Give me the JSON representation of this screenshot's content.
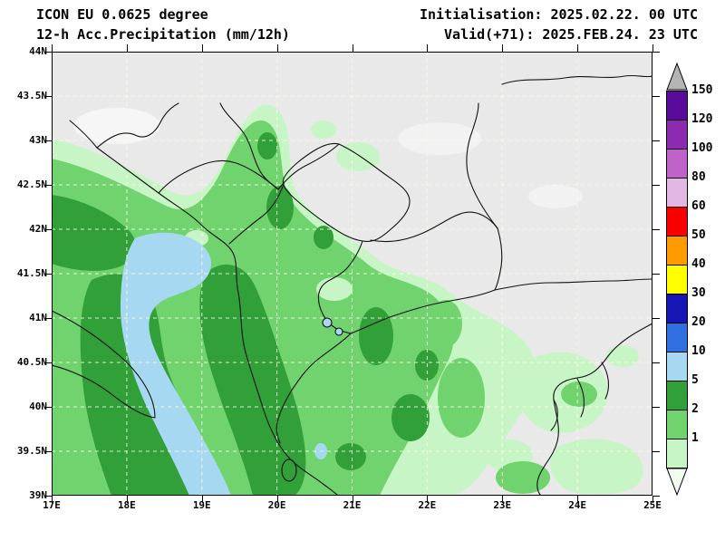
{
  "header": {
    "line1_left": "ICON EU 0.0625 degree",
    "line2_left": "12-h Acc.Precipitation (mm/12h)",
    "line1_right": "Initialisation: 2025.02.22. 00 UTC",
    "line2_right": "Valid(+71): 2025.FEB.24. 23 UTC"
  },
  "axes": {
    "lat": [
      "44N",
      "43.5N",
      "43N",
      "42.5N",
      "42N",
      "41.5N",
      "41N",
      "40.5N",
      "40N",
      "39.5N",
      "39N"
    ],
    "lon": [
      "17E",
      "18E",
      "19E",
      "20E",
      "21E",
      "22E",
      "23E",
      "24E",
      "25E"
    ]
  },
  "legend": {
    "arrow_top_color": "#b4b4b4",
    "arrow_bottom_color": "#f2fdf0",
    "bands": [
      {
        "label": "150",
        "color": "#5a0a9b"
      },
      {
        "label": "120",
        "color": "#8d2bb0"
      },
      {
        "label": "100",
        "color": "#bf63c8"
      },
      {
        "label": "80",
        "color": "#e3b7e3"
      },
      {
        "label": "60",
        "color": "#f80000"
      },
      {
        "label": "50",
        "color": "#ff9a00"
      },
      {
        "label": "40",
        "color": "#ffff00"
      },
      {
        "label": "30",
        "color": "#1616b4"
      },
      {
        "label": "20",
        "color": "#2f6fdf"
      },
      {
        "label": "10",
        "color": "#a6d8f2"
      },
      {
        "label": "5",
        "color": "#31a038"
      },
      {
        "label": "2",
        "color": "#70d36e"
      },
      {
        "label": "1",
        "color": "#c8f5c5"
      }
    ]
  },
  "map_colors": {
    "background": "#e9e9e9",
    "no_precip_patch": "#f6f6f6",
    "light_green": "#c8f5c5",
    "medium_green": "#70d36e",
    "dark_green": "#31a038",
    "light_blue": "#a6d8f2",
    "border": "#111111",
    "grid": "#fafae6"
  },
  "chart_data": {
    "type": "heatmap",
    "title": "12-h Acc.Precipitation (mm/12h)",
    "x_range": [
      "17E",
      "25E"
    ],
    "y_range": [
      "39N",
      "44N"
    ],
    "levels_mm": [
      1,
      2,
      5,
      10,
      20,
      30,
      40,
      50,
      60,
      80,
      100,
      120,
      150
    ],
    "legend_position": "right"
  }
}
